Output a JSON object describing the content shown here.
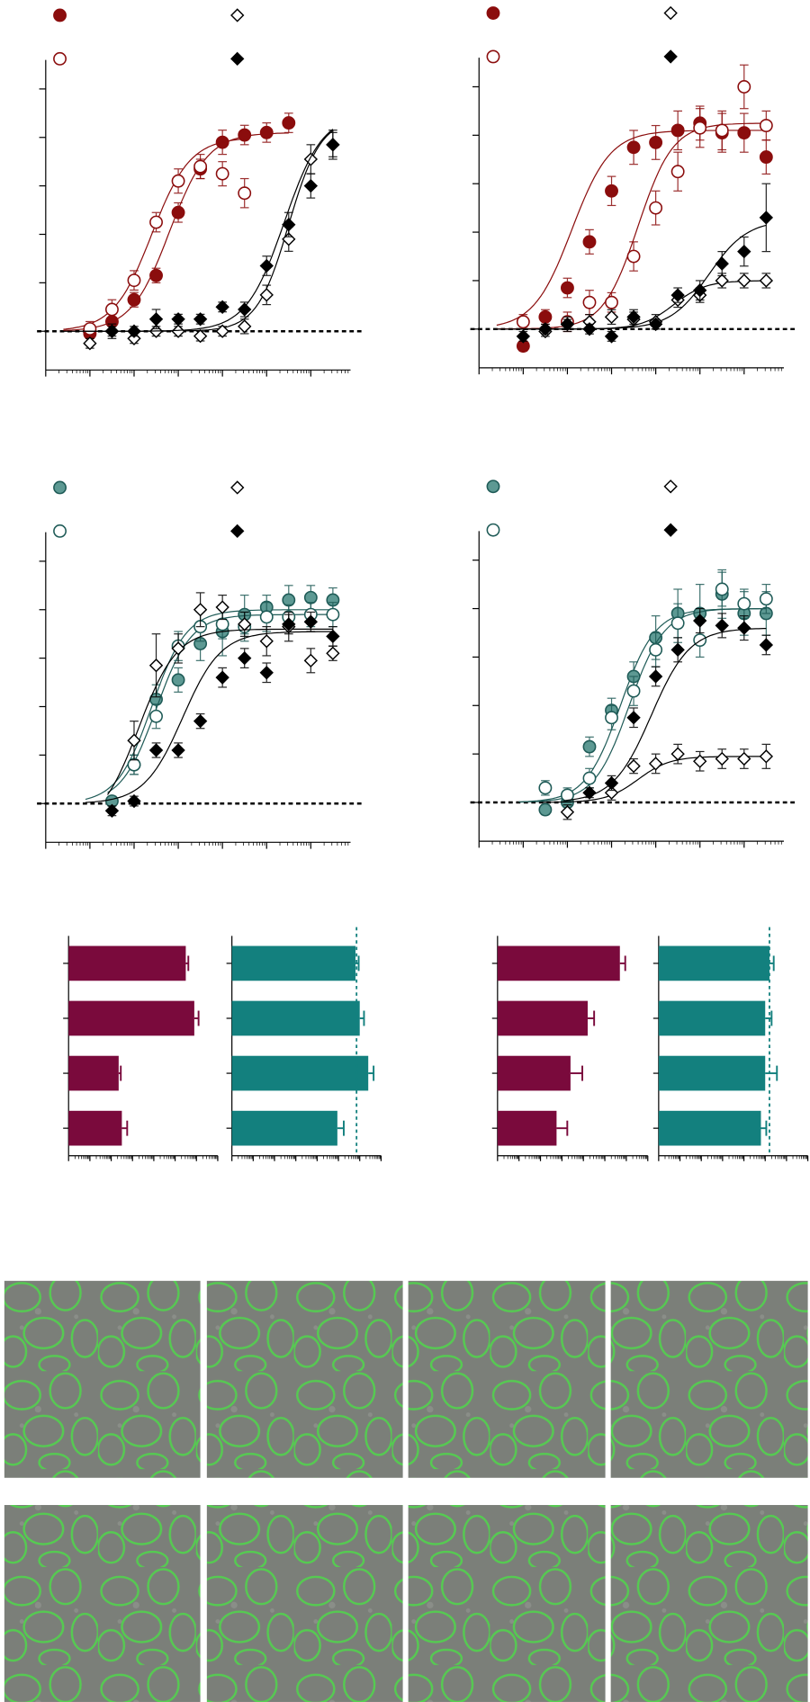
{
  "chart_data": [
    {
      "type": "scatter",
      "x": [
        -10,
        -9.5,
        -9,
        -8.5,
        -8,
        -7.5,
        -7,
        -6.5,
        -6,
        -5.5,
        -5,
        -4.5
      ],
      "xlim": [
        -11,
        -4.1
      ],
      "xticks": [
        -11,
        -10,
        -9,
        -8,
        -7,
        -6,
        -5
      ],
      "xscale": "log",
      "ylim": [
        -16,
        112
      ],
      "yticks": [
        0,
        20,
        40,
        60,
        80,
        100
      ],
      "zero_line": true,
      "series": [
        {
          "color": "#8b0d0d",
          "marker": "circle",
          "filled": true,
          "values": [
            -1,
            4,
            13,
            23,
            49,
            67,
            78,
            81,
            82,
            86,
            null,
            null
          ],
          "errors": [
            2,
            3,
            3,
            3,
            4,
            4,
            5,
            4,
            4,
            4,
            null,
            null
          ],
          "fit": {
            "bottom": 0,
            "top": 82,
            "logec50": -8.2,
            "hill": 1
          }
        },
        {
          "color": "#8b0d0d",
          "marker": "circle",
          "filled": false,
          "values": [
            1,
            9,
            21,
            45,
            62,
            68,
            65,
            57,
            null,
            null,
            null,
            null
          ],
          "errors": [
            3,
            4,
            4,
            4,
            5,
            5,
            5,
            6,
            null,
            null,
            null,
            null
          ],
          "fit": {
            "bottom": 0,
            "top": 80,
            "logec50": -8.6,
            "hill": 1
          }
        },
        {
          "color": "#000000",
          "marker": "diamond",
          "filled": false,
          "values": [
            -5,
            0,
            -3,
            0,
            0,
            -2,
            0,
            2,
            15,
            38,
            71,
            77
          ],
          "errors": [
            2,
            3,
            2,
            2,
            2,
            2,
            2,
            3,
            4,
            5,
            6,
            5
          ],
          "fit": {
            "bottom": 0,
            "top": 88,
            "logec50": -5.5,
            "hill": 1.2
          }
        },
        {
          "color": "#000000",
          "marker": "diamond",
          "filled": true,
          "values": [
            null,
            0,
            0,
            5,
            5,
            5,
            10,
            9,
            27,
            44,
            60,
            77
          ],
          "errors": [
            null,
            2,
            2,
            4,
            2,
            2,
            2,
            3,
            4,
            5,
            5,
            6
          ],
          "fit": {
            "bottom": 0,
            "top": 90,
            "logec50": -5.6,
            "hill": 1
          }
        }
      ]
    },
    {
      "type": "scatter",
      "x": [
        -10,
        -9.5,
        -9,
        -8.5,
        -8,
        -7.5,
        -7,
        -6.5,
        -6,
        -5.5,
        -5,
        -4.5
      ],
      "xlim": [
        -11,
        -4.1
      ],
      "xticks": [
        -11,
        -10,
        -9,
        -8,
        -7,
        -6,
        -5
      ],
      "xscale": "log",
      "ylim": [
        -16,
        112
      ],
      "yticks": [
        0,
        20,
        40,
        60,
        80,
        100
      ],
      "zero_line": true,
      "series": [
        {
          "color": "#8b0d0d",
          "marker": "circle",
          "filled": true,
          "values": [
            -7,
            5,
            17,
            36,
            57,
            75,
            77,
            82,
            85,
            81,
            81,
            71
          ],
          "errors": [
            2,
            3,
            4,
            5,
            6,
            7,
            7,
            8,
            7,
            8,
            8,
            7
          ],
          "fit": {
            "bottom": 0,
            "top": 82,
            "logec50": -8.9,
            "hill": 1
          }
        },
        {
          "color": "#8b0d0d",
          "marker": "circle",
          "filled": false,
          "values": [
            3,
            null,
            3,
            11,
            11,
            30,
            50,
            65,
            83,
            82,
            100,
            84
          ],
          "errors": [
            3,
            null,
            4,
            5,
            4,
            6,
            7,
            8,
            8,
            8,
            9,
            6
          ],
          "fit": {
            "bottom": 0,
            "top": 85,
            "logec50": -7.4,
            "hill": 1.1
          }
        },
        {
          "color": "#000000",
          "marker": "diamond",
          "filled": false,
          "values": [
            null,
            -1,
            2,
            3,
            5,
            4,
            3,
            12,
            14,
            20,
            20,
            20
          ],
          "errors": [
            null,
            2,
            3,
            3,
            3,
            3,
            3,
            3,
            3,
            3,
            3,
            3
          ],
          "fit": {
            "bottom": 0,
            "top": 20,
            "logec50": -6.6,
            "hill": 1.2
          }
        },
        {
          "color": "#000000",
          "marker": "diamond",
          "filled": true,
          "values": [
            -3,
            0,
            2,
            0,
            -3,
            5,
            2,
            14,
            16,
            27,
            32,
            46
          ],
          "errors": [
            2,
            2,
            2,
            2,
            2,
            3,
            2,
            3,
            4,
            5,
            6,
            14
          ],
          "fit": {
            "bottom": 0,
            "top": 45,
            "logec50": -5.8,
            "hill": 1
          }
        }
      ]
    },
    {
      "type": "scatter",
      "x": [
        -9.5,
        -9,
        -8.5,
        -8,
        -7.5,
        -7,
        -6.5,
        -6,
        -5.5,
        -5,
        -4.5
      ],
      "xlim": [
        -11,
        -4.1
      ],
      "xticks": [
        -11,
        -10,
        -9,
        -8,
        -7,
        -6,
        -5
      ],
      "xscale": "log",
      "ylim": [
        -16,
        112
      ],
      "yticks": [
        0,
        20,
        40,
        60,
        80,
        100
      ],
      "zero_line": true,
      "series": [
        {
          "color": "#1f5b57",
          "fill": "#5d9993",
          "marker": "circle",
          "filled": true,
          "values": [
            1,
            16,
            43,
            51,
            66,
            71,
            78,
            81,
            84,
            85,
            84
          ],
          "errors": [
            2,
            4,
            6,
            5,
            7,
            10,
            8,
            5,
            6,
            5,
            5
          ],
          "fit": {
            "bottom": 0,
            "top": 80,
            "logec50": -8.6,
            "hill": 1.1
          }
        },
        {
          "color": "#1f5b57",
          "marker": "circle",
          "filled": false,
          "values": [
            null,
            16,
            36,
            65,
            73,
            74,
            73,
            77,
            77,
            78,
            78
          ],
          "errors": [
            null,
            4,
            5,
            6,
            6,
            6,
            6,
            6,
            5,
            5,
            5
          ],
          "fit": {
            "bottom": 0,
            "top": 78,
            "logec50": -8.5,
            "hill": 1.1
          }
        },
        {
          "color": "#000000",
          "marker": "diamond",
          "filled": false,
          "values": [
            null,
            26,
            57,
            64,
            80,
            81,
            74,
            67,
            73,
            59,
            62
          ],
          "errors": [
            null,
            8,
            13,
            6,
            7,
            5,
            5,
            6,
            6,
            5,
            3
          ],
          "fit": {
            "bottom": -10,
            "top": 72,
            "logec50": -8.9,
            "hill": 1
          }
        },
        {
          "color": "#000000",
          "marker": "diamond",
          "filled": true,
          "values": [
            -3,
            1,
            22,
            22,
            34,
            52,
            60,
            54,
            74,
            75,
            69
          ],
          "errors": [
            2,
            2,
            3,
            3,
            3,
            4,
            4,
            4,
            4,
            4,
            4
          ],
          "fit": {
            "bottom": 0,
            "top": 71,
            "logec50": -7.9,
            "hill": 1
          }
        }
      ]
    },
    {
      "type": "scatter",
      "x": [
        -9.5,
        -9,
        -8.5,
        -8,
        -7.5,
        -7,
        -6.5,
        -6,
        -5.5,
        -5,
        -4.5
      ],
      "xlim": [
        -11,
        -4.1
      ],
      "xticks": [
        -11,
        -10,
        -9,
        -8,
        -7,
        -6,
        -5
      ],
      "xscale": "log",
      "ylim": [
        -16,
        112
      ],
      "yticks": [
        0,
        20,
        40,
        60,
        80,
        100
      ],
      "zero_line": true,
      "series": [
        {
          "color": "#1f5b57",
          "fill": "#5d9993",
          "marker": "circle",
          "filled": true,
          "values": [
            -3,
            0,
            23,
            38,
            52,
            68,
            78,
            78,
            86,
            78,
            78
          ],
          "errors": [
            2,
            3,
            4,
            5,
            6,
            9,
            10,
            12,
            10,
            9,
            9
          ],
          "fit": {
            "bottom": 0,
            "top": 80,
            "logec50": -7.8,
            "hill": 1.1
          }
        },
        {
          "color": "#1f5b57",
          "marker": "circle",
          "filled": false,
          "values": [
            6,
            3,
            10,
            35,
            46,
            63,
            74,
            67,
            88,
            82,
            84
          ],
          "errors": [
            3,
            3,
            4,
            5,
            6,
            7,
            8,
            7,
            7,
            6,
            6
          ],
          "fit": {
            "bottom": 0,
            "top": 80,
            "logec50": -7.6,
            "hill": 1.1
          }
        },
        {
          "color": "#000000",
          "marker": "diamond",
          "filled": false,
          "values": [
            null,
            -4,
            null,
            4,
            15,
            16,
            20,
            17,
            18,
            18,
            19
          ],
          "errors": [
            null,
            3,
            null,
            3,
            3,
            4,
            4,
            4,
            4,
            4,
            5
          ],
          "fit": {
            "bottom": 0,
            "top": 19,
            "logec50": -7.4,
            "hill": 1.2
          }
        },
        {
          "color": "#000000",
          "marker": "diamond",
          "filled": true,
          "values": [
            null,
            null,
            4,
            8,
            35,
            52,
            63,
            75,
            73,
            72,
            65
          ],
          "errors": [
            null,
            null,
            2,
            3,
            4,
            4,
            5,
            5,
            5,
            5,
            4
          ],
          "fit": {
            "bottom": 0,
            "top": 72,
            "logec50": -7.1,
            "hill": 1
          }
        }
      ]
    },
    {
      "type": "bar",
      "orientation": "horizontal",
      "xscale": "log",
      "xlim": [
        0,
        7
      ],
      "xticks": [
        0,
        1,
        2,
        3,
        4,
        5,
        6,
        7
      ],
      "color": "#7a0a3c",
      "values": [
        5.5,
        5.9,
        2.35,
        2.5
      ],
      "errors": [
        0.12,
        0.2,
        0.1,
        0.25
      ]
    },
    {
      "type": "bar",
      "orientation": "horizontal",
      "xscale": "log",
      "xlim": [
        0,
        7
      ],
      "xticks": [
        0,
        1,
        2,
        3,
        4,
        5,
        6,
        7
      ],
      "color": "#13807e",
      "values": [
        5.8,
        6.0,
        6.4,
        4.95
      ],
      "errors": [
        0.15,
        0.2,
        0.25,
        0.3
      ],
      "reference": 5.85
    },
    {
      "type": "bar",
      "orientation": "horizontal",
      "xscale": "log",
      "xlim": [
        0,
        7
      ],
      "xticks": [
        0,
        1,
        2,
        3,
        4,
        5,
        6,
        7
      ],
      "color": "#7a0a3c",
      "values": [
        5.7,
        4.2,
        3.4,
        2.75
      ],
      "errors": [
        0.25,
        0.3,
        0.55,
        0.5
      ]
    },
    {
      "type": "bar",
      "orientation": "horizontal",
      "xscale": "log",
      "xlim": [
        0,
        7
      ],
      "xticks": [
        0,
        1,
        2,
        3,
        4,
        5,
        6,
        7
      ],
      "color": "#13807e",
      "values": [
        5.2,
        5.0,
        5.0,
        4.8
      ],
      "errors": [
        0.2,
        0.3,
        0.55,
        0.25
      ],
      "reference": 5.2
    }
  ]
}
